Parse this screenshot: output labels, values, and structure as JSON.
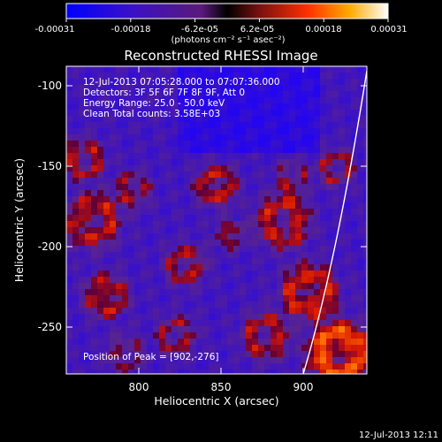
{
  "colorbar": {
    "ticks": [
      "-0.00031",
      "-0.00018",
      "-6.2e-05",
      "6.2e-05",
      "0.00018",
      "0.00031"
    ],
    "units": "(photons cm⁻² s⁻¹ asec⁻²)"
  },
  "chart_data": {
    "type": "heatmap",
    "title": "Reconstructed RHESSI Image",
    "xlabel": "Heliocentric X (arcsec)",
    "ylabel": "Heliocentric Y (arcsec)",
    "xlim": [
      760,
      945
    ],
    "ylim": [
      -285,
      -90
    ],
    "x_ticks": [
      "800",
      "850",
      "900"
    ],
    "y_ticks": [
      "-100",
      "-150",
      "-200",
      "-250"
    ],
    "vmin": -0.00031,
    "vmax": 0.00031,
    "annotations": [
      "12-Jul-2013 07:05:28.000 to 07:07:36.000",
      "Detectors: 3F 5F 6F 7F 8F 9F, Att 0",
      "Energy Range: 25.0 - 50.0 keV",
      "Clean    Total counts: 3.58E+03"
    ],
    "peak_label": "Position of Peak = [902,-276]",
    "limb_color": "#ffffff"
  },
  "footer": {
    "timestamp": "12-Jul-2013 12:11"
  }
}
